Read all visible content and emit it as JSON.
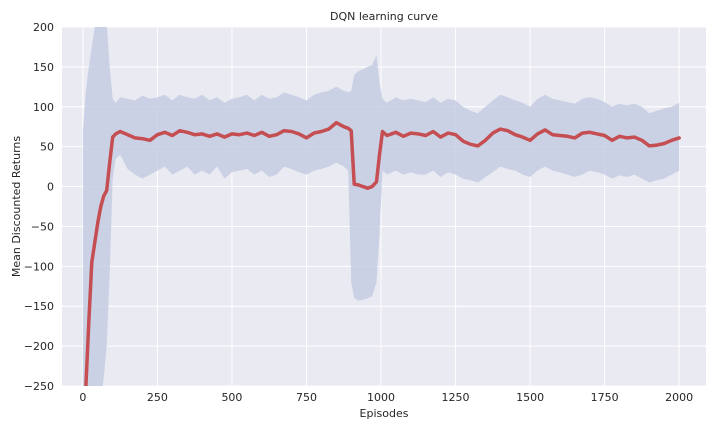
{
  "chart_data": {
    "type": "line",
    "title": "DQN learning curve",
    "xlabel": "Episodes",
    "ylabel": "Mean Discounted Returns",
    "xlim": [
      -70,
      2090
    ],
    "ylim": [
      -250,
      200
    ],
    "x_ticks": [
      0,
      250,
      500,
      750,
      1000,
      1250,
      1500,
      1750,
      2000
    ],
    "y_ticks": [
      -250,
      -200,
      -150,
      -100,
      -50,
      0,
      50,
      100,
      150,
      200
    ],
    "grid": true,
    "legend": "none",
    "colors": {
      "background": "#eaeaf2",
      "line": "#c44e52",
      "band": "#c5cde3",
      "grid": "#ffffff"
    },
    "series": [
      {
        "x": [
          0,
          10,
          20,
          30,
          40,
          50,
          60,
          70,
          80,
          90,
          100,
          110,
          125,
          150,
          175,
          200,
          225,
          250,
          275,
          300,
          325,
          350,
          375,
          400,
          425,
          450,
          475,
          500,
          525,
          550,
          575,
          600,
          625,
          650,
          675,
          700,
          725,
          750,
          775,
          800,
          825,
          850,
          875,
          890,
          900,
          910,
          925,
          940,
          955,
          970,
          985,
          995,
          1005,
          1020,
          1050,
          1075,
          1100,
          1125,
          1150,
          1175,
          1200,
          1225,
          1250,
          1275,
          1300,
          1325,
          1350,
          1375,
          1400,
          1425,
          1450,
          1475,
          1500,
          1525,
          1550,
          1575,
          1600,
          1625,
          1650,
          1675,
          1700,
          1725,
          1750,
          1775,
          1800,
          1825,
          1850,
          1875,
          1900,
          1925,
          1950,
          1975,
          2000
        ],
        "y": [
          -300,
          -250,
          -170,
          -95,
          -70,
          -45,
          -25,
          -12,
          -5,
          30,
          62,
          66,
          69,
          65,
          61,
          60,
          58,
          65,
          68,
          64,
          70,
          68,
          65,
          66,
          63,
          66,
          62,
          66,
          65,
          67,
          64,
          68,
          63,
          65,
          70,
          69,
          66,
          61,
          67,
          69,
          72,
          80,
          75,
          73,
          70,
          3,
          2,
          0,
          -2,
          0,
          6,
          40,
          69,
          64,
          68,
          63,
          67,
          66,
          64,
          69,
          62,
          67,
          65,
          57,
          53,
          51,
          58,
          67,
          72,
          70,
          65,
          62,
          58,
          66,
          71,
          65,
          64,
          63,
          61,
          67,
          68,
          66,
          64,
          58,
          63,
          61,
          62,
          58,
          51,
          52,
          54,
          58,
          61
        ],
        "lower": [
          -300,
          -300,
          -300,
          -300,
          -300,
          -290,
          -270,
          -240,
          -200,
          -110,
          10,
          35,
          40,
          22,
          15,
          10,
          15,
          20,
          25,
          15,
          20,
          25,
          15,
          20,
          15,
          25,
          10,
          18,
          20,
          22,
          15,
          20,
          12,
          15,
          25,
          22,
          18,
          15,
          20,
          22,
          25,
          30,
          25,
          20,
          -120,
          -140,
          -143,
          -142,
          -140,
          -138,
          -120,
          -60,
          20,
          15,
          20,
          15,
          18,
          15,
          15,
          20,
          12,
          18,
          15,
          10,
          8,
          5,
          12,
          18,
          25,
          22,
          20,
          15,
          12,
          20,
          25,
          20,
          18,
          15,
          12,
          15,
          20,
          18,
          15,
          10,
          14,
          12,
          15,
          10,
          5,
          8,
          10,
          15,
          20
        ],
        "upper": [
          70,
          120,
          150,
          175,
          200,
          210,
          215,
          212,
          205,
          150,
          110,
          105,
          112,
          110,
          108,
          114,
          110,
          112,
          115,
          108,
          115,
          112,
          110,
          115,
          108,
          112,
          105,
          110,
          112,
          115,
          108,
          115,
          110,
          112,
          118,
          115,
          112,
          108,
          115,
          118,
          120,
          125,
          120,
          118,
          120,
          140,
          145,
          147,
          150,
          152,
          165,
          130,
          110,
          105,
          112,
          108,
          110,
          108,
          106,
          112,
          105,
          110,
          108,
          100,
          95,
          92,
          100,
          108,
          115,
          112,
          108,
          105,
          100,
          110,
          115,
          110,
          108,
          106,
          104,
          110,
          112,
          110,
          106,
          100,
          104,
          102,
          104,
          100,
          92,
          95,
          98,
          100,
          105
        ]
      }
    ]
  }
}
